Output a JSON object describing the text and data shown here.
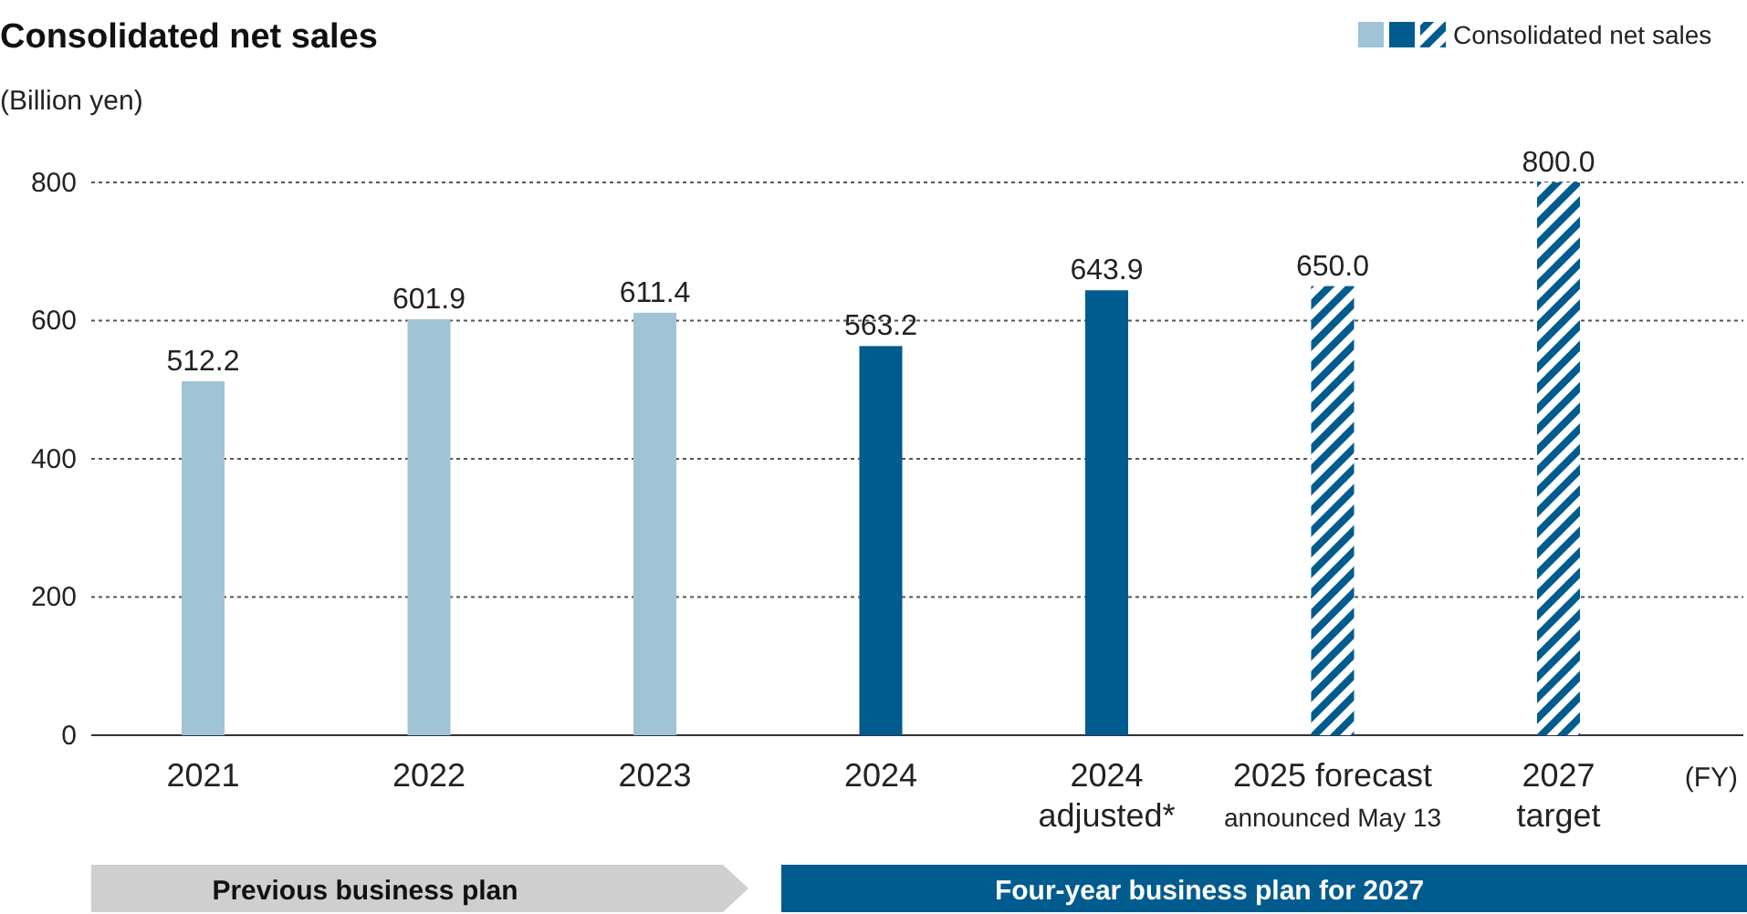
{
  "chart_data": {
    "type": "bar",
    "title": "Consolidated net sales",
    "ylabel": "(Billion yen)",
    "xlabel": "(FY)",
    "legend_title": "Consolidated net sales",
    "categories": [
      "2021",
      "2022",
      "2023",
      "2024",
      "2024\nadjusted*",
      "2025 forecast\nannounced May 13",
      "2027\ntarget"
    ],
    "stacked": true,
    "series": [
      {
        "color": "#a0c3d6",
        "values": [
          512.2,
          601.9,
          611.4,
          null,
          null,
          null,
          null
        ],
        "value_labels": [
          "512.2",
          "601.9",
          "611.4",
          null,
          null,
          null,
          null
        ]
      },
      {
        "color": "#005b8f",
        "values": [
          null,
          null,
          null,
          563.2,
          643.9,
          null,
          null
        ],
        "value_labels": [
          null,
          null,
          null,
          "563.2",
          "643.9",
          null,
          null
        ]
      },
      {
        "color": "#005b8f",
        "values": [
          null,
          null,
          null,
          null,
          null,
          650.0,
          800.0
        ],
        "value_labels": [
          null,
          null,
          null,
          null,
          null,
          "650.0",
          "800.0"
        ]
      }
    ],
    "ylim": [
      0,
      800
    ],
    "yticks": [
      0,
      200,
      400,
      600,
      800
    ],
    "grid": "y",
    "annotations": [
      "Previous business plan",
      "Four-year business plan for 2027"
    ]
  }
}
